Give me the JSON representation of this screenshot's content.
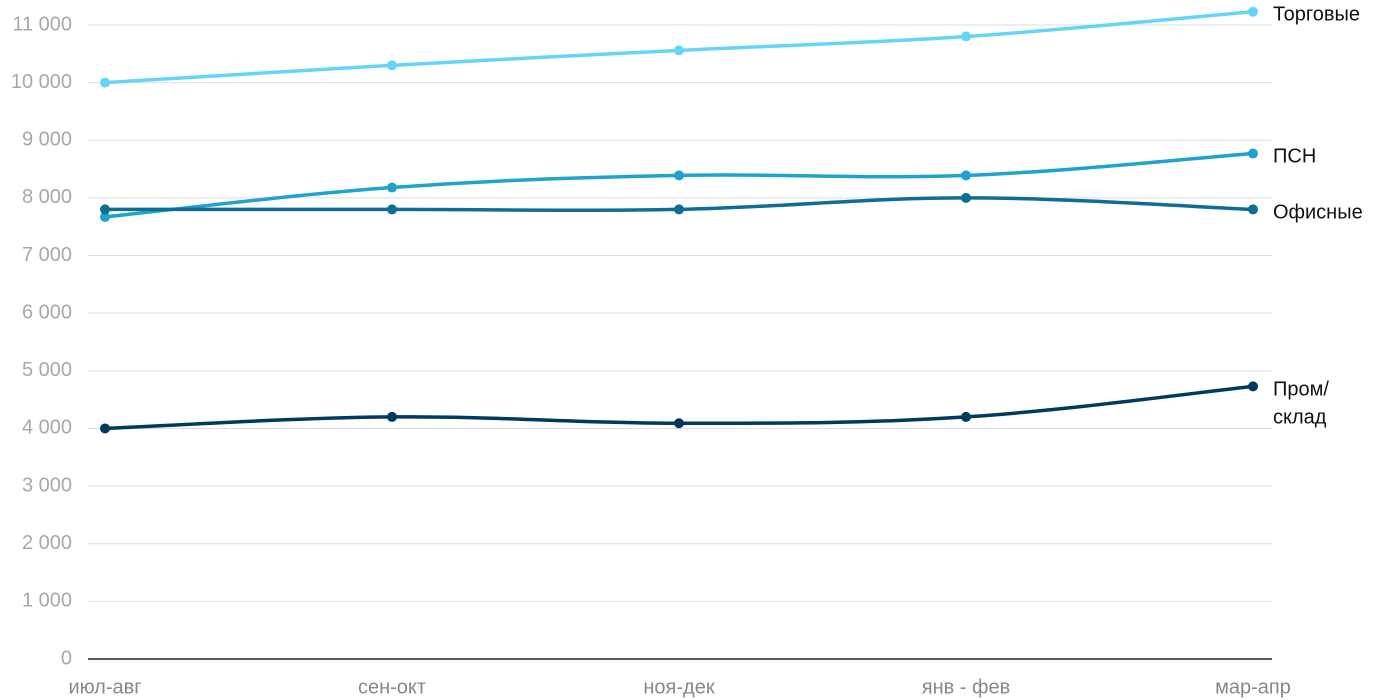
{
  "chart_data": {
    "type": "line",
    "categories": [
      "июл-авг",
      "сен-окт",
      "ноя-дек",
      "янв - фев",
      "мар-апр"
    ],
    "series": [
      {
        "name": "Торговые",
        "color": "#66d4f7",
        "values": [
          10000,
          10300,
          10560,
          10800,
          11230
        ]
      },
      {
        "name": "ПСН",
        "color": "#1fa3cc",
        "values": [
          7670,
          8180,
          8390,
          8390,
          8770
        ]
      },
      {
        "name": "Офисные",
        "color": "#0e6d95",
        "values": [
          7800,
          7800,
          7800,
          8000,
          7800
        ]
      },
      {
        "name": "Пром/склад",
        "color": "#003a5c",
        "values": [
          4000,
          4200,
          4090,
          4200,
          4730
        ]
      }
    ],
    "ylim": [
      0,
      11000
    ],
    "yticks": [
      0,
      {
        "value": 1000,
        "label": "1 000"
      },
      {
        "value": 2000,
        "label": "2 000"
      },
      {
        "value": 3000,
        "label": "3 000"
      },
      {
        "value": 4000,
        "label": "4 000"
      },
      {
        "value": 5000,
        "label": "5 000"
      },
      {
        "value": 6000,
        "label": "6 000"
      },
      {
        "value": 7000,
        "label": "7 000"
      },
      {
        "value": 8000,
        "label": "8 000"
      },
      {
        "value": 9000,
        "label": "9 000"
      },
      {
        "value": 10000,
        "label": "10 000"
      },
      {
        "value": 11000,
        "label": "11 000"
      }
    ],
    "grid": true
  }
}
